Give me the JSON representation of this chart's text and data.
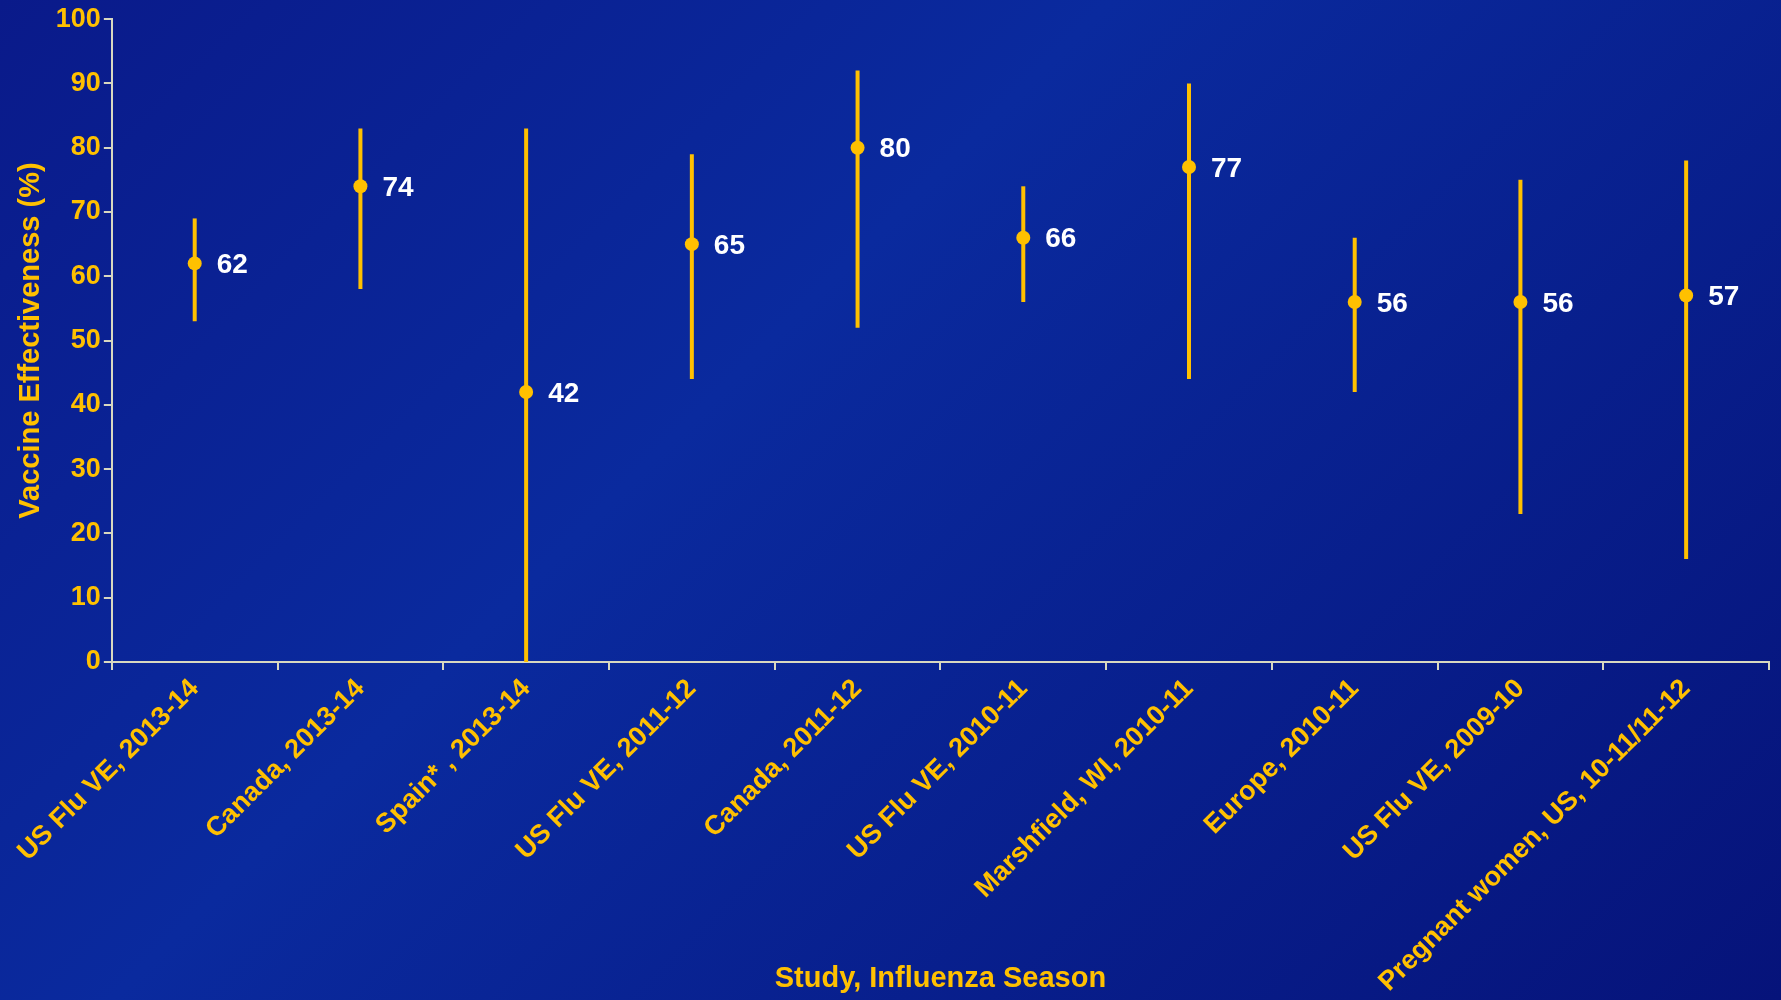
{
  "chart_data": {
    "type": "scatter",
    "xlabel": "Study, Influenza Season",
    "ylabel": "Vaccine Effectiveness (%)",
    "categories": [
      "US Flu VE, 2013-14",
      "Canada, 2013-14",
      "Spain* , 2013-14",
      "US Flu VE, 2011-12",
      "Canada, 2011-12",
      "US Flu VE, 2010-11",
      "Marshfield, WI, 2010-11",
      "Europe, 2010-11",
      "US Flu VE, 2009-10",
      "Pregnant women, US, 10-11/11-12"
    ],
    "values": [
      62,
      74,
      42,
      65,
      80,
      66,
      77,
      56,
      56,
      57
    ],
    "errors": [
      [
        53,
        69
      ],
      [
        58,
        83
      ],
      [
        0,
        83
      ],
      [
        44,
        79
      ],
      [
        52,
        92
      ],
      [
        56,
        74
      ],
      [
        44,
        90
      ],
      [
        42,
        66
      ],
      [
        23,
        75
      ],
      [
        16,
        78
      ]
    ],
    "color": "#ffc000",
    "marker": "circle",
    "data_labels": true,
    "ylim": [
      0,
      100
    ],
    "yticks": [
      0,
      10,
      20,
      30,
      40,
      50,
      60,
      70,
      80,
      90,
      100
    ]
  }
}
